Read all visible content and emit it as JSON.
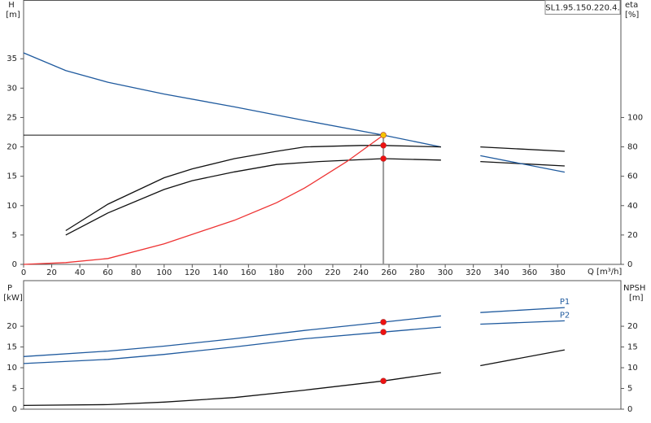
{
  "chart_data": [
    {
      "type": "line",
      "model": "SL1.95.150.220.4.",
      "y_label": "H",
      "y_unit": "[m]",
      "y2_label": "eta",
      "y2_unit": "[%]",
      "x_label": "Q [m³/h]",
      "xlim": [
        0,
        425
      ],
      "ylim": [
        0,
        45
      ],
      "y2lim": [
        0,
        180
      ],
      "xticks": [
        0,
        20,
        40,
        60,
        80,
        100,
        120,
        140,
        160,
        180,
        200,
        220,
        240,
        260,
        280,
        300,
        320,
        340,
        360,
        380
      ],
      "yticks": [
        0,
        5,
        10,
        15,
        20,
        25,
        30,
        35
      ],
      "y2ticks": [
        0,
        20,
        40,
        60,
        80,
        100
      ],
      "series": [
        {
          "color": "#1f5a9e",
          "axis": "y",
          "x": [
            0,
            30,
            60,
            100,
            150,
            200,
            256,
            297
          ],
          "values": [
            36,
            33,
            31,
            29,
            26.8,
            24.5,
            22,
            20
          ]
        },
        {
          "color": "#111111",
          "axis": "y2",
          "x": [
            30,
            60,
            100,
            120,
            150,
            180,
            200,
            240,
            256,
            297
          ],
          "values": [
            23,
            41,
            59,
            65,
            72,
            77,
            80,
            81,
            81,
            80
          ]
        },
        {
          "color": "#111111",
          "axis": "y2",
          "x": [
            30,
            60,
            100,
            120,
            150,
            180,
            210,
            256,
            297
          ],
          "values": [
            20,
            35,
            51,
            57,
            63,
            68,
            70,
            72,
            71
          ]
        },
        {
          "color": "#ee3333",
          "axis": "y",
          "x": [
            0,
            30,
            60,
            100,
            150,
            180,
            200,
            230,
            256
          ],
          "values": [
            0,
            0.3,
            1,
            3.5,
            7.5,
            10.5,
            13,
            17.5,
            22
          ]
        },
        {
          "color": "#111111",
          "axis": "y2",
          "x": [
            325,
            385
          ],
          "values": [
            80,
            77
          ]
        },
        {
          "color": "#111111",
          "axis": "y2",
          "x": [
            325,
            385
          ],
          "values": [
            70,
            67
          ]
        },
        {
          "color": "#1f5a9e",
          "axis": "y",
          "x": [
            325,
            385
          ],
          "values": [
            18.5,
            15.7
          ]
        }
      ],
      "operating_point": {
        "x": 256,
        "y": 22
      },
      "points": [
        {
          "x": 256,
          "y": 22,
          "axis": "y",
          "color": "#f5c400"
        },
        {
          "x": 256,
          "y": 81,
          "axis": "y2",
          "color": "#ee1111"
        },
        {
          "x": 256,
          "y": 72,
          "axis": "y2",
          "color": "#ee1111"
        }
      ]
    },
    {
      "type": "line",
      "y_label": "P",
      "y_unit": "[kW]",
      "y2_label": "NPSH",
      "y2_unit": "[m]",
      "xlim": [
        0,
        425
      ],
      "ylim": [
        0,
        31
      ],
      "y2lim": [
        0,
        31
      ],
      "yticks": [
        0,
        5,
        10,
        15,
        20
      ],
      "y2ticks": [
        0,
        5,
        10,
        15,
        20
      ],
      "series": [
        {
          "color": "#1f5a9e",
          "axis": "y",
          "x": [
            0,
            60,
            100,
            150,
            200,
            256,
            297
          ],
          "values": [
            12.7,
            14,
            15.2,
            17,
            19,
            21,
            22.5
          ]
        },
        {
          "color": "#1f5a9e",
          "axis": "y",
          "x": [
            0,
            60,
            100,
            150,
            200,
            256,
            297
          ],
          "values": [
            11,
            12,
            13.2,
            15,
            17,
            18.6,
            19.8
          ]
        },
        {
          "color": "#111111",
          "axis": "y2",
          "x": [
            0,
            60,
            100,
            150,
            200,
            256,
            297
          ],
          "values": [
            0.9,
            1.1,
            1.7,
            2.8,
            4.6,
            6.8,
            8.8
          ]
        },
        {
          "name": "P1",
          "color": "#1f5a9e",
          "axis": "y",
          "x": [
            325,
            385
          ],
          "values": [
            23.3,
            24.5
          ]
        },
        {
          "name": "P2",
          "color": "#1f5a9e",
          "axis": "y",
          "x": [
            325,
            385
          ],
          "values": [
            20.5,
            21.3
          ]
        },
        {
          "color": "#111111",
          "axis": "y2",
          "x": [
            325,
            385
          ],
          "values": [
            10.5,
            14.3
          ]
        }
      ],
      "points": [
        {
          "x": 256,
          "y": 21,
          "axis": "y",
          "color": "#ee1111"
        },
        {
          "x": 256,
          "y": 18.6,
          "axis": "y",
          "color": "#ee1111"
        },
        {
          "x": 256,
          "y": 6.8,
          "axis": "y2",
          "color": "#ee1111"
        }
      ]
    }
  ]
}
